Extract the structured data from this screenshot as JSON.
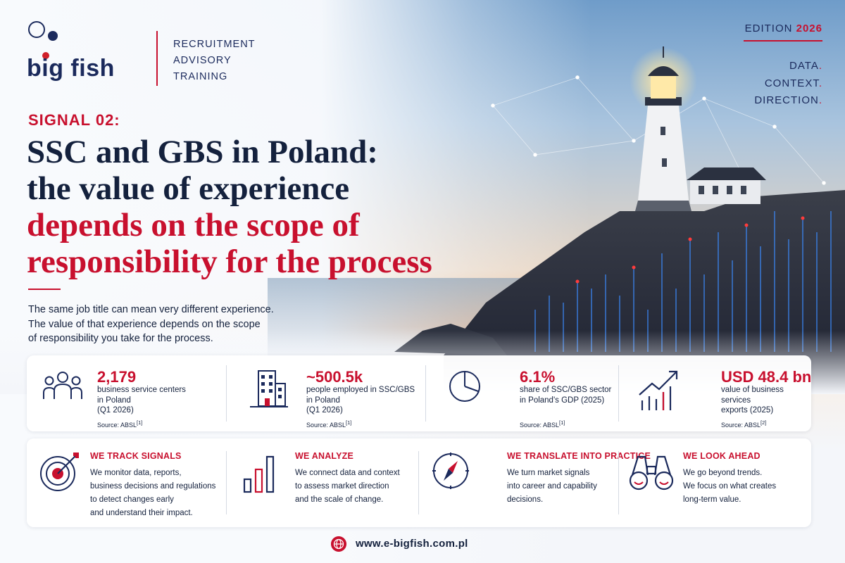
{
  "brand": {
    "logo_text": "big fish",
    "services": [
      "RECRUITMENT",
      "ADVISORY",
      "TRAINING"
    ]
  },
  "edition": {
    "label": "EDITION",
    "year": "2026"
  },
  "tagline": [
    "DATA",
    "CONTEXT",
    "DIRECTION"
  ],
  "signal_label": "SIGNAL 02:",
  "title": {
    "line1": "SSC and GBS in Poland:",
    "line2": "the value of experience",
    "line3": "depends on the scope of",
    "line4": "responsibility for the process"
  },
  "intro": {
    "line1": "The same job title can mean very different experience.",
    "line2": "The value of that experience depends on the scope",
    "line3": "of responsibility you take for the process."
  },
  "stats": [
    {
      "icon": "people-icon",
      "value": "2,179",
      "label": [
        "business service centers",
        "in Poland",
        "(Q1 2026)"
      ],
      "source": "Source: ABSL",
      "ref": "[1]"
    },
    {
      "icon": "building-icon",
      "value": "~500.5k",
      "label": [
        "people employed in SSC/GBS",
        "in Poland",
        "(Q1 2026)"
      ],
      "source": "Source: ABSL",
      "ref": "[1]"
    },
    {
      "icon": "pie-chart-icon",
      "value": "6.1%",
      "label": [
        "share of SSC/GBS sector",
        "in Poland's GDP (2025)"
      ],
      "source": "Source: ABSL",
      "ref": "[1]"
    },
    {
      "icon": "growth-chart-icon",
      "value": "USD 48.4 bn",
      "label": [
        "value of business services",
        "exports (2025)"
      ],
      "source": "Source: ABSL",
      "ref": "[2]"
    }
  ],
  "pillars": [
    {
      "icon": "target-icon",
      "heading": "WE TRACK SIGNALS",
      "text": [
        "We monitor data, reports,",
        "business decisions and regulations",
        "to detect changes early",
        "and understand their impact."
      ]
    },
    {
      "icon": "bar-chart-icon",
      "heading": "WE ANALYZE",
      "text": [
        "We connect data and context",
        "to assess market direction",
        "and the scale of change."
      ]
    },
    {
      "icon": "compass-icon",
      "heading": "WE TRANSLATE INTO PRACTICE",
      "text": [
        "We turn market signals",
        "into career and capability",
        "decisions."
      ]
    },
    {
      "icon": "binoculars-icon",
      "heading": "WE LOOK AHEAD",
      "text": [
        "We go beyond trends.",
        "We focus on what creates",
        "long-term value."
      ]
    }
  ],
  "footer": {
    "url": "www.e-bigfish.com.pl"
  },
  "colors": {
    "navy": "#14213d",
    "red": "#c8102e",
    "brand_navy": "#1b2a5c"
  }
}
